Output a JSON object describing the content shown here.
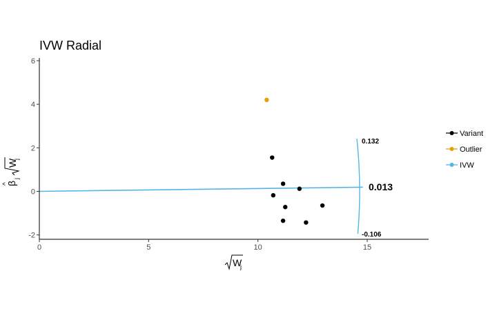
{
  "chart_data": {
    "type": "scatter",
    "title": "IVW Radial",
    "xlabel_radical": "W",
    "xlabel_sub": "j",
    "ylabel_beta": "β",
    "ylabel_hat": "^",
    "ylabel_sub": "j",
    "ylabel_radical": "W",
    "ylabel_radical_sub": "j",
    "xlim": [
      0,
      17.8
    ],
    "ylim": [
      -2.2,
      6.1
    ],
    "x_ticks": [
      0,
      5,
      10,
      15
    ],
    "x_tick_labels": [
      "0",
      "5",
      "10",
      "15"
    ],
    "y_ticks": [
      -2,
      0,
      2,
      4,
      6
    ],
    "y_tick_labels": [
      "-2",
      "0",
      "2",
      "4",
      "6"
    ],
    "grid": false,
    "legend_position": "right",
    "colors": {
      "variant": "#000000",
      "outlier": "#E69F00",
      "ivw": "#56B4E9"
    },
    "series": [
      {
        "name": "Variant",
        "kind": "points",
        "color": "#000000",
        "points": [
          {
            "x": 10.65,
            "y": 1.55
          },
          {
            "x": 11.15,
            "y": 0.35
          },
          {
            "x": 11.9,
            "y": 0.12
          },
          {
            "x": 10.7,
            "y": -0.18
          },
          {
            "x": 11.25,
            "y": -0.72
          },
          {
            "x": 12.95,
            "y": -0.65
          },
          {
            "x": 11.15,
            "y": -1.35
          },
          {
            "x": 12.2,
            "y": -1.43
          }
        ]
      },
      {
        "name": "Outlier",
        "kind": "points",
        "color": "#E69F00",
        "points": [
          {
            "x": 10.4,
            "y": 4.2
          }
        ]
      },
      {
        "name": "IVW",
        "kind": "line",
        "color": "#56B4E9",
        "slope": 0.013,
        "x_range": [
          0,
          14.8
        ]
      }
    ],
    "ci_arc": {
      "center_estimate": 0.013,
      "upper": 0.132,
      "lower": -0.106,
      "upper_label": "0.132",
      "center_label": "0.013",
      "lower_label": "-0.106"
    },
    "legend": [
      {
        "label": "Variant",
        "color": "#000000"
      },
      {
        "label": "Outlier",
        "color": "#E69F00"
      },
      {
        "label": "IVW",
        "color": "#56B4E9"
      }
    ]
  }
}
